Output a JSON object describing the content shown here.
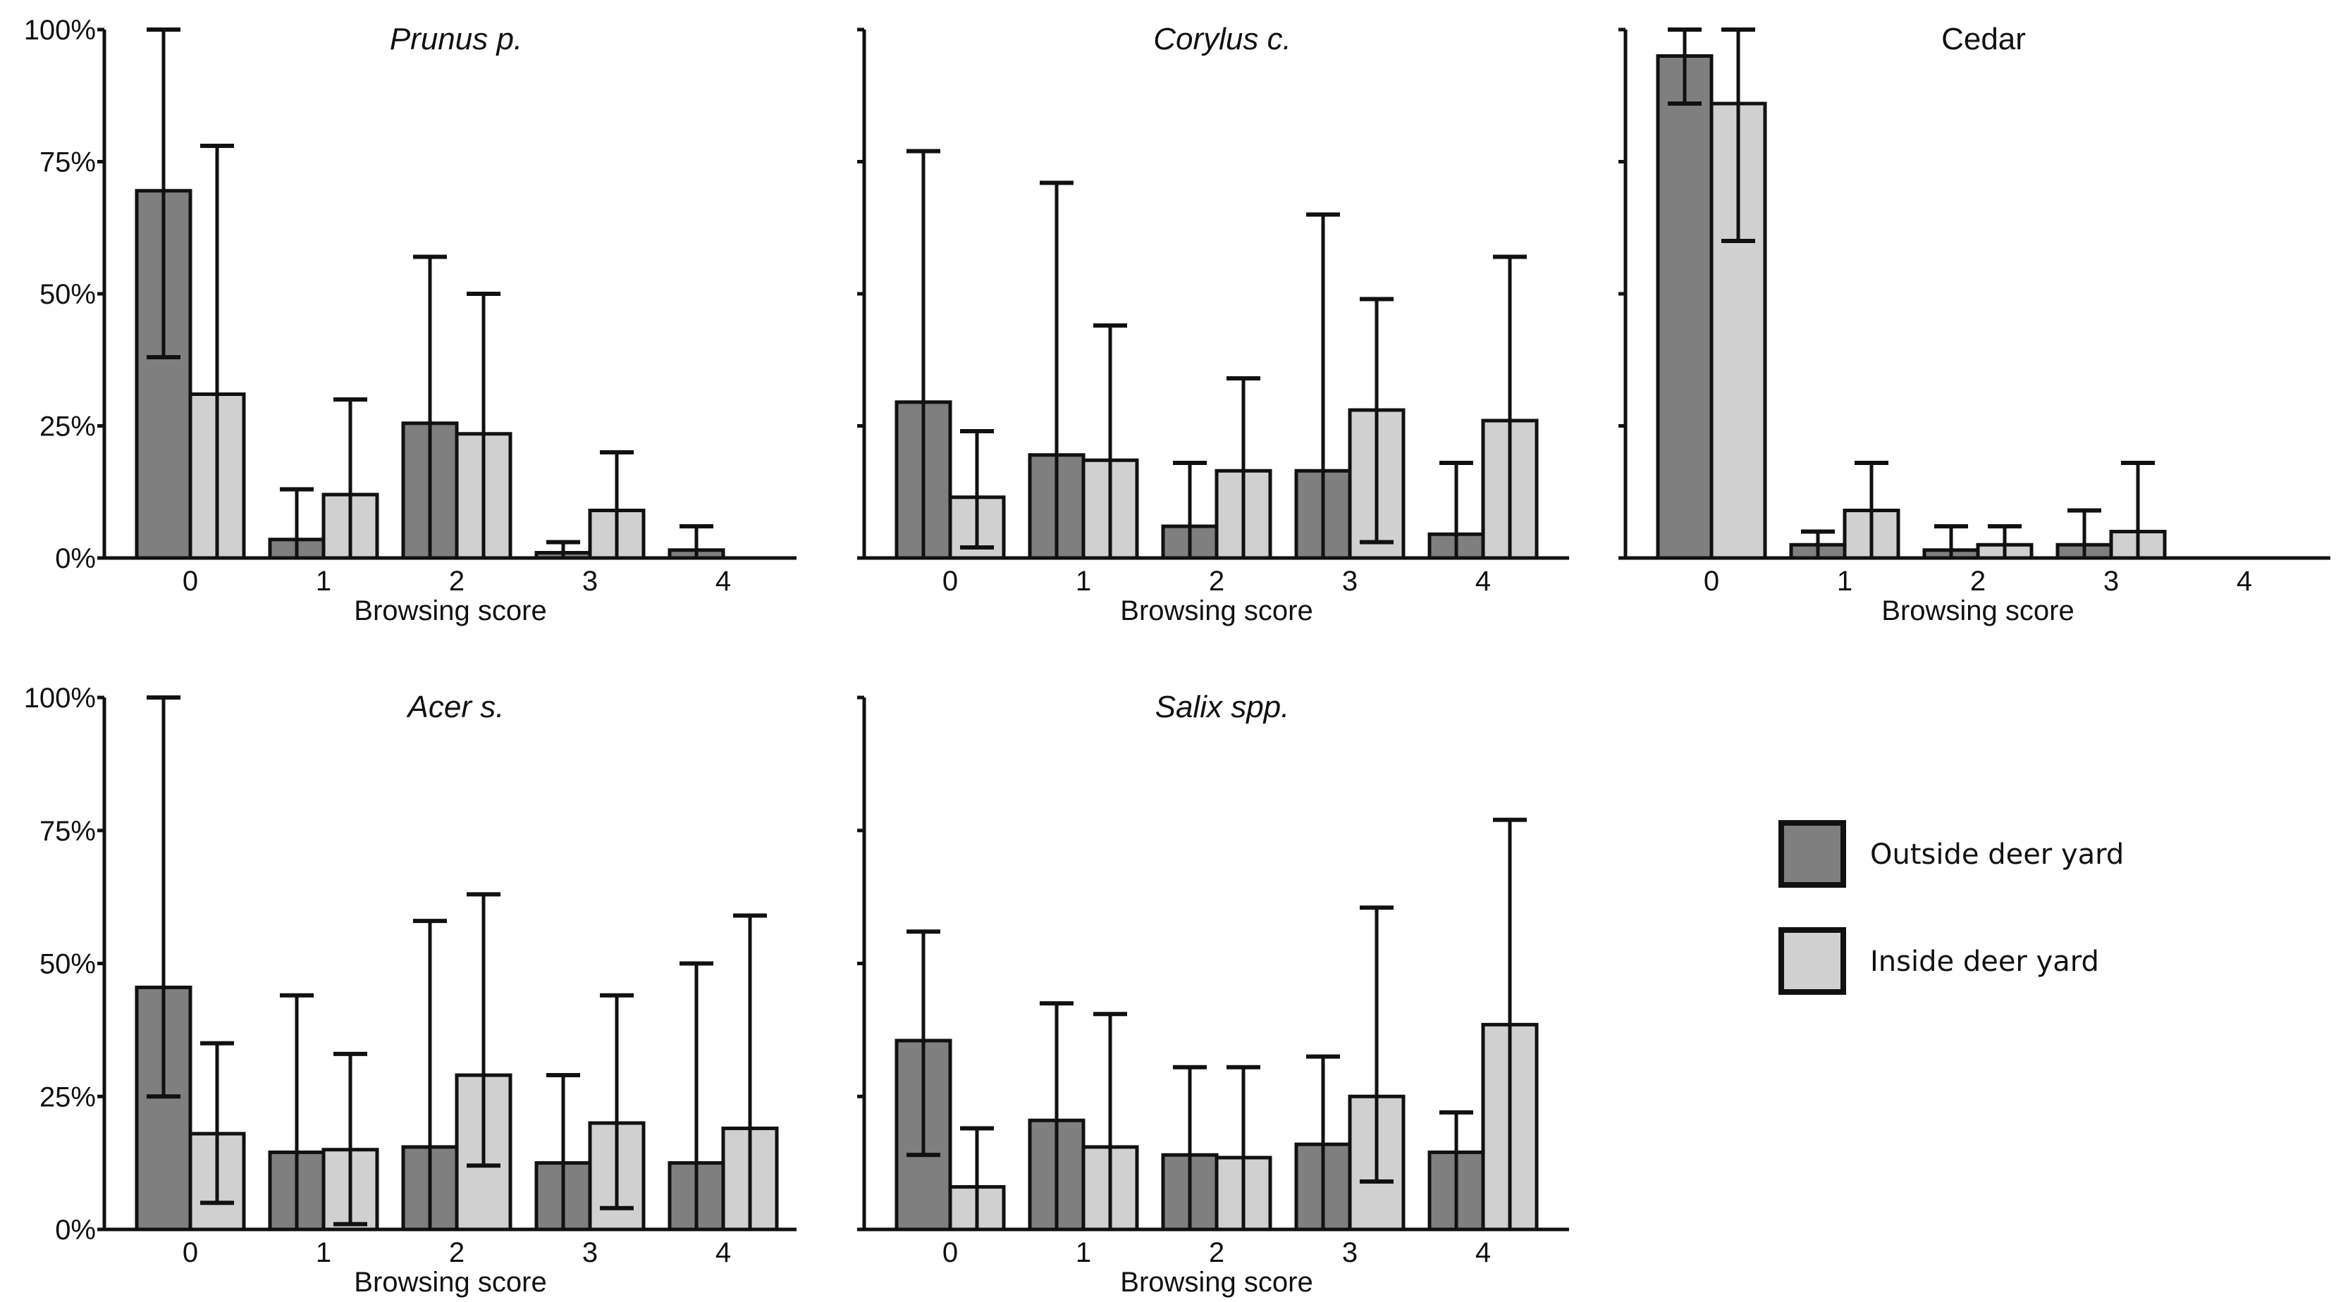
{
  "chart_data": [
    {
      "type": "bar",
      "title": "Prunus p.",
      "title_italic": true,
      "xlabel": "Browsing score",
      "ylabel": "",
      "ylim": [
        0,
        100
      ],
      "yticks": [
        "0%",
        "25%",
        "50%",
        "75%",
        "100%"
      ],
      "show_ytick_labels": true,
      "categories": [
        "0",
        "1",
        "2",
        "3",
        "4"
      ],
      "series": [
        {
          "name": "Outside deer yard",
          "values": [
            69.5,
            3.5,
            25.5,
            1,
            1.5
          ],
          "err_low": [
            38,
            0,
            0,
            0,
            0
          ],
          "err_high": [
            100,
            13,
            57,
            3,
            6
          ]
        },
        {
          "name": "Inside deer yard",
          "values": [
            31,
            12,
            23.5,
            9,
            0
          ],
          "err_low": [
            0,
            0,
            0,
            0,
            0
          ],
          "err_high": [
            78,
            30,
            50,
            20,
            0
          ]
        }
      ]
    },
    {
      "type": "bar",
      "title": "Corylus c.",
      "title_italic": true,
      "xlabel": "Browsing score",
      "ylabel": "",
      "ylim": [
        0,
        100
      ],
      "yticks": [
        "0%",
        "25%",
        "50%",
        "75%",
        "100%"
      ],
      "show_ytick_labels": false,
      "categories": [
        "0",
        "1",
        "2",
        "3",
        "4"
      ],
      "series": [
        {
          "name": "Outside deer yard",
          "values": [
            29.5,
            19.5,
            6,
            16.5,
            4.5
          ],
          "err_low": [
            0,
            0,
            0,
            0,
            0
          ],
          "err_high": [
            77,
            71,
            18,
            65,
            18
          ]
        },
        {
          "name": "Inside deer yard",
          "values": [
            11.5,
            18.5,
            16.5,
            28,
            26
          ],
          "err_low": [
            2,
            0,
            0,
            3,
            0
          ],
          "err_high": [
            24,
            44,
            34,
            49,
            57
          ]
        }
      ]
    },
    {
      "type": "bar",
      "title": "Cedar",
      "title_italic": false,
      "xlabel": "Browsing score",
      "ylabel": "",
      "ylim": [
        0,
        100
      ],
      "yticks": [
        "0%",
        "25%",
        "50%",
        "75%",
        "100%"
      ],
      "show_ytick_labels": false,
      "categories": [
        "0",
        "1",
        "2",
        "3",
        "4"
      ],
      "series": [
        {
          "name": "Outside deer yard",
          "values": [
            95,
            2.5,
            1.5,
            2.5,
            0
          ],
          "err_low": [
            86,
            0,
            0,
            0,
            0
          ],
          "err_high": [
            100,
            5,
            6,
            9,
            0
          ]
        },
        {
          "name": "Inside deer yard",
          "values": [
            86,
            9,
            2.5,
            5,
            0
          ],
          "err_low": [
            60,
            0,
            0,
            0,
            0
          ],
          "err_high": [
            100,
            18,
            6,
            18,
            0
          ]
        }
      ]
    },
    {
      "type": "bar",
      "title": "Acer s.",
      "title_italic": true,
      "xlabel": "Browsing score",
      "ylabel": "",
      "ylim": [
        0,
        100
      ],
      "yticks": [
        "0%",
        "25%",
        "50%",
        "75%",
        "100%"
      ],
      "show_ytick_labels": true,
      "categories": [
        "0",
        "1",
        "2",
        "3",
        "4"
      ],
      "series": [
        {
          "name": "Outside deer yard",
          "values": [
            45.5,
            14.5,
            15.5,
            12.5,
            12.5
          ],
          "err_low": [
            25,
            0,
            0,
            0,
            0
          ],
          "err_high": [
            100,
            44,
            58,
            29,
            50
          ]
        },
        {
          "name": "Inside deer yard",
          "values": [
            18,
            15,
            29,
            20,
            19
          ],
          "err_low": [
            5,
            1,
            12,
            4,
            0
          ],
          "err_high": [
            35,
            33,
            63,
            44,
            59
          ]
        }
      ]
    },
    {
      "type": "bar",
      "title": "Salix spp.",
      "title_italic": true,
      "xlabel": "Browsing score",
      "ylabel": "",
      "ylim": [
        0,
        100
      ],
      "yticks": [
        "0%",
        "25%",
        "50%",
        "75%",
        "100%"
      ],
      "show_ytick_labels": false,
      "categories": [
        "0",
        "1",
        "2",
        "3",
        "4"
      ],
      "series": [
        {
          "name": "Outside deer yard",
          "values": [
            35.5,
            20.5,
            14,
            16,
            14.5
          ],
          "err_low": [
            14,
            0,
            0,
            0,
            0
          ],
          "err_high": [
            56,
            42.5,
            30.5,
            32.5,
            22
          ]
        },
        {
          "name": "Inside deer yard",
          "values": [
            8,
            15.5,
            13.5,
            25,
            38.5
          ],
          "err_low": [
            0,
            0,
            0,
            9,
            0
          ],
          "err_high": [
            19,
            40.5,
            30.5,
            60.5,
            77
          ]
        }
      ]
    }
  ],
  "legend": {
    "items": [
      {
        "label": "Outside deer yard",
        "color": "#7f7f7f"
      },
      {
        "label": "Inside deer yard",
        "color": "#d0d0d0"
      }
    ]
  },
  "colors": {
    "outside": "#7f7f7f",
    "inside": "#d0d0d0",
    "stroke": "#111111"
  }
}
